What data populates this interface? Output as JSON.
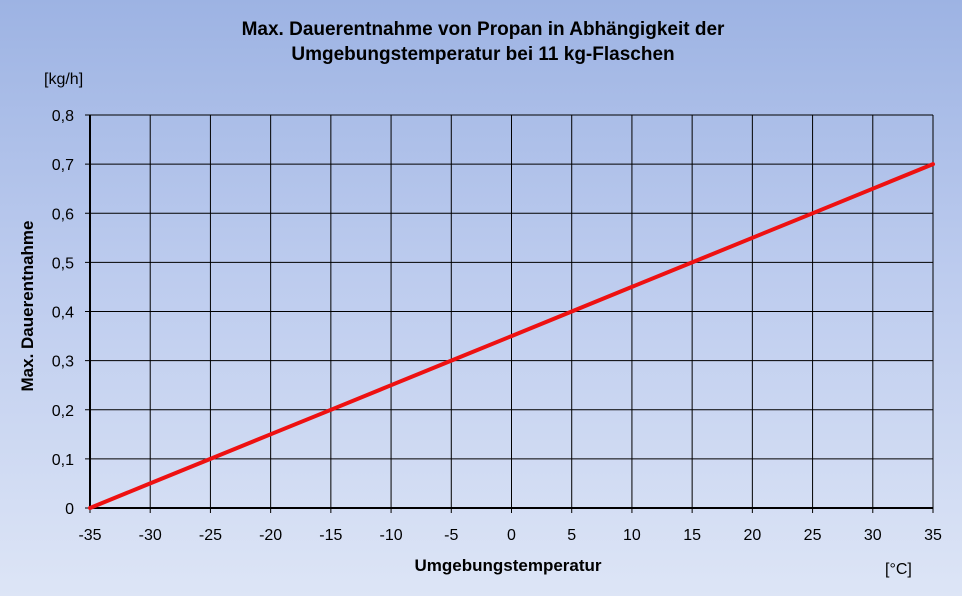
{
  "chart_data": {
    "type": "line",
    "title_lines": [
      "Max. Dauerentnahme von Propan in Abhängigkeit der",
      "Umgebungstemperatur bei 11 kg-Flaschen"
    ],
    "xlabel": "Umgebungstemperatur",
    "ylabel": "Max. Dauerentnahme",
    "x_unit": "[°C]",
    "y_unit": "[kg/h]",
    "xlim": [
      -35,
      35
    ],
    "ylim": [
      0,
      0.8
    ],
    "x_ticks": [
      "-35",
      "-30",
      "-25",
      "-20",
      "-15",
      "-10",
      "-5",
      "0",
      "5",
      "10",
      "15",
      "20",
      "25",
      "30",
      "35"
    ],
    "y_ticks": [
      "0",
      "0,1",
      "0,2",
      "0,3",
      "0,4",
      "0,5",
      "0,6",
      "0,7",
      "0,8"
    ],
    "grid": true,
    "series": [
      {
        "color": "#ee1111",
        "x": [
          -35,
          -30,
          -25,
          -20,
          -15,
          -10,
          -5,
          0,
          5,
          10,
          15,
          20,
          25,
          30,
          35
        ],
        "y": [
          0,
          0.05,
          0.1,
          0.15,
          0.2,
          0.25,
          0.3,
          0.35,
          0.4,
          0.45,
          0.5,
          0.55,
          0.6,
          0.65,
          0.7
        ]
      }
    ]
  }
}
